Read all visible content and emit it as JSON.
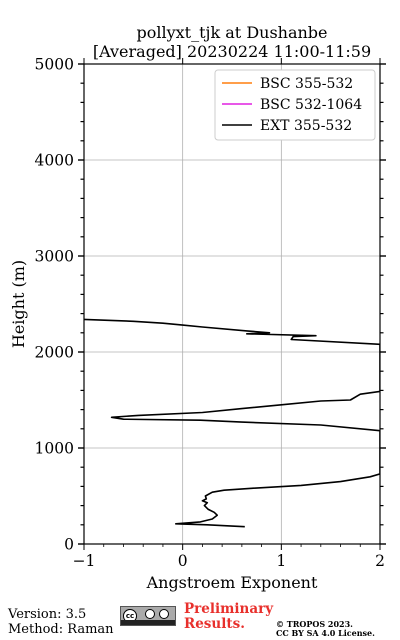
{
  "chart_data": {
    "type": "line",
    "title_line1": "pollyxt_tjk at Dushanbe",
    "title_line2": "[Averaged] 20230224 11:00-11:59",
    "xlabel": "Angstroem Exponent",
    "ylabel": "Height (m)",
    "xlim": [
      -1,
      2
    ],
    "ylim": [
      0,
      5000
    ],
    "x_ticks": [
      -1,
      0,
      1,
      2
    ],
    "y_ticks": [
      0,
      1000,
      2000,
      3000,
      4000,
      5000
    ],
    "grid": true,
    "legend_position": "top-right",
    "series": [
      {
        "name": "BSC 355-532",
        "color": "#ff7f0e",
        "x": [],
        "y": []
      },
      {
        "name": "BSC 532-1064",
        "color": "#e020e0",
        "x": [],
        "y": []
      },
      {
        "name": "EXT 355-532",
        "color": "#000000",
        "x": [
          0.63,
          0.45,
          0.25,
          -0.07,
          0.18,
          0.3,
          0.35,
          0.32,
          0.26,
          0.22,
          0.25,
          0.2,
          0.24,
          0.23,
          0.3,
          0.42,
          0.7,
          1.2,
          1.6,
          1.9,
          2.0,
          2.0,
          1.4,
          0.6,
          0.18,
          -0.6,
          -0.72,
          -0.45,
          0.2,
          0.6,
          1.0,
          1.4,
          1.7,
          1.8,
          2.0,
          2.0,
          1.1,
          1.12,
          1.35,
          0.65,
          0.88,
          0.65,
          0.2,
          0.0,
          -0.2,
          -0.5,
          -1.0
        ],
        "y": [
          180,
          190,
          200,
          210,
          230,
          260,
          300,
          330,
          360,
          400,
          430,
          450,
          470,
          500,
          540,
          560,
          580,
          610,
          650,
          700,
          730,
          1180,
          1240,
          1270,
          1290,
          1300,
          1320,
          1340,
          1370,
          1410,
          1450,
          1490,
          1500,
          1560,
          1590,
          2080,
          2130,
          2160,
          2170,
          2190,
          2200,
          2220,
          2260,
          2280,
          2300,
          2320,
          2340
        ]
      }
    ]
  },
  "footer": {
    "version": "Version: 3.5",
    "method": "Method: Raman",
    "preliminary_line1": "Preliminary",
    "preliminary_line2": "Results.",
    "copyright_line1": "© TROPOS 2023.",
    "copyright_line2": "CC BY SA 4.0 License."
  }
}
